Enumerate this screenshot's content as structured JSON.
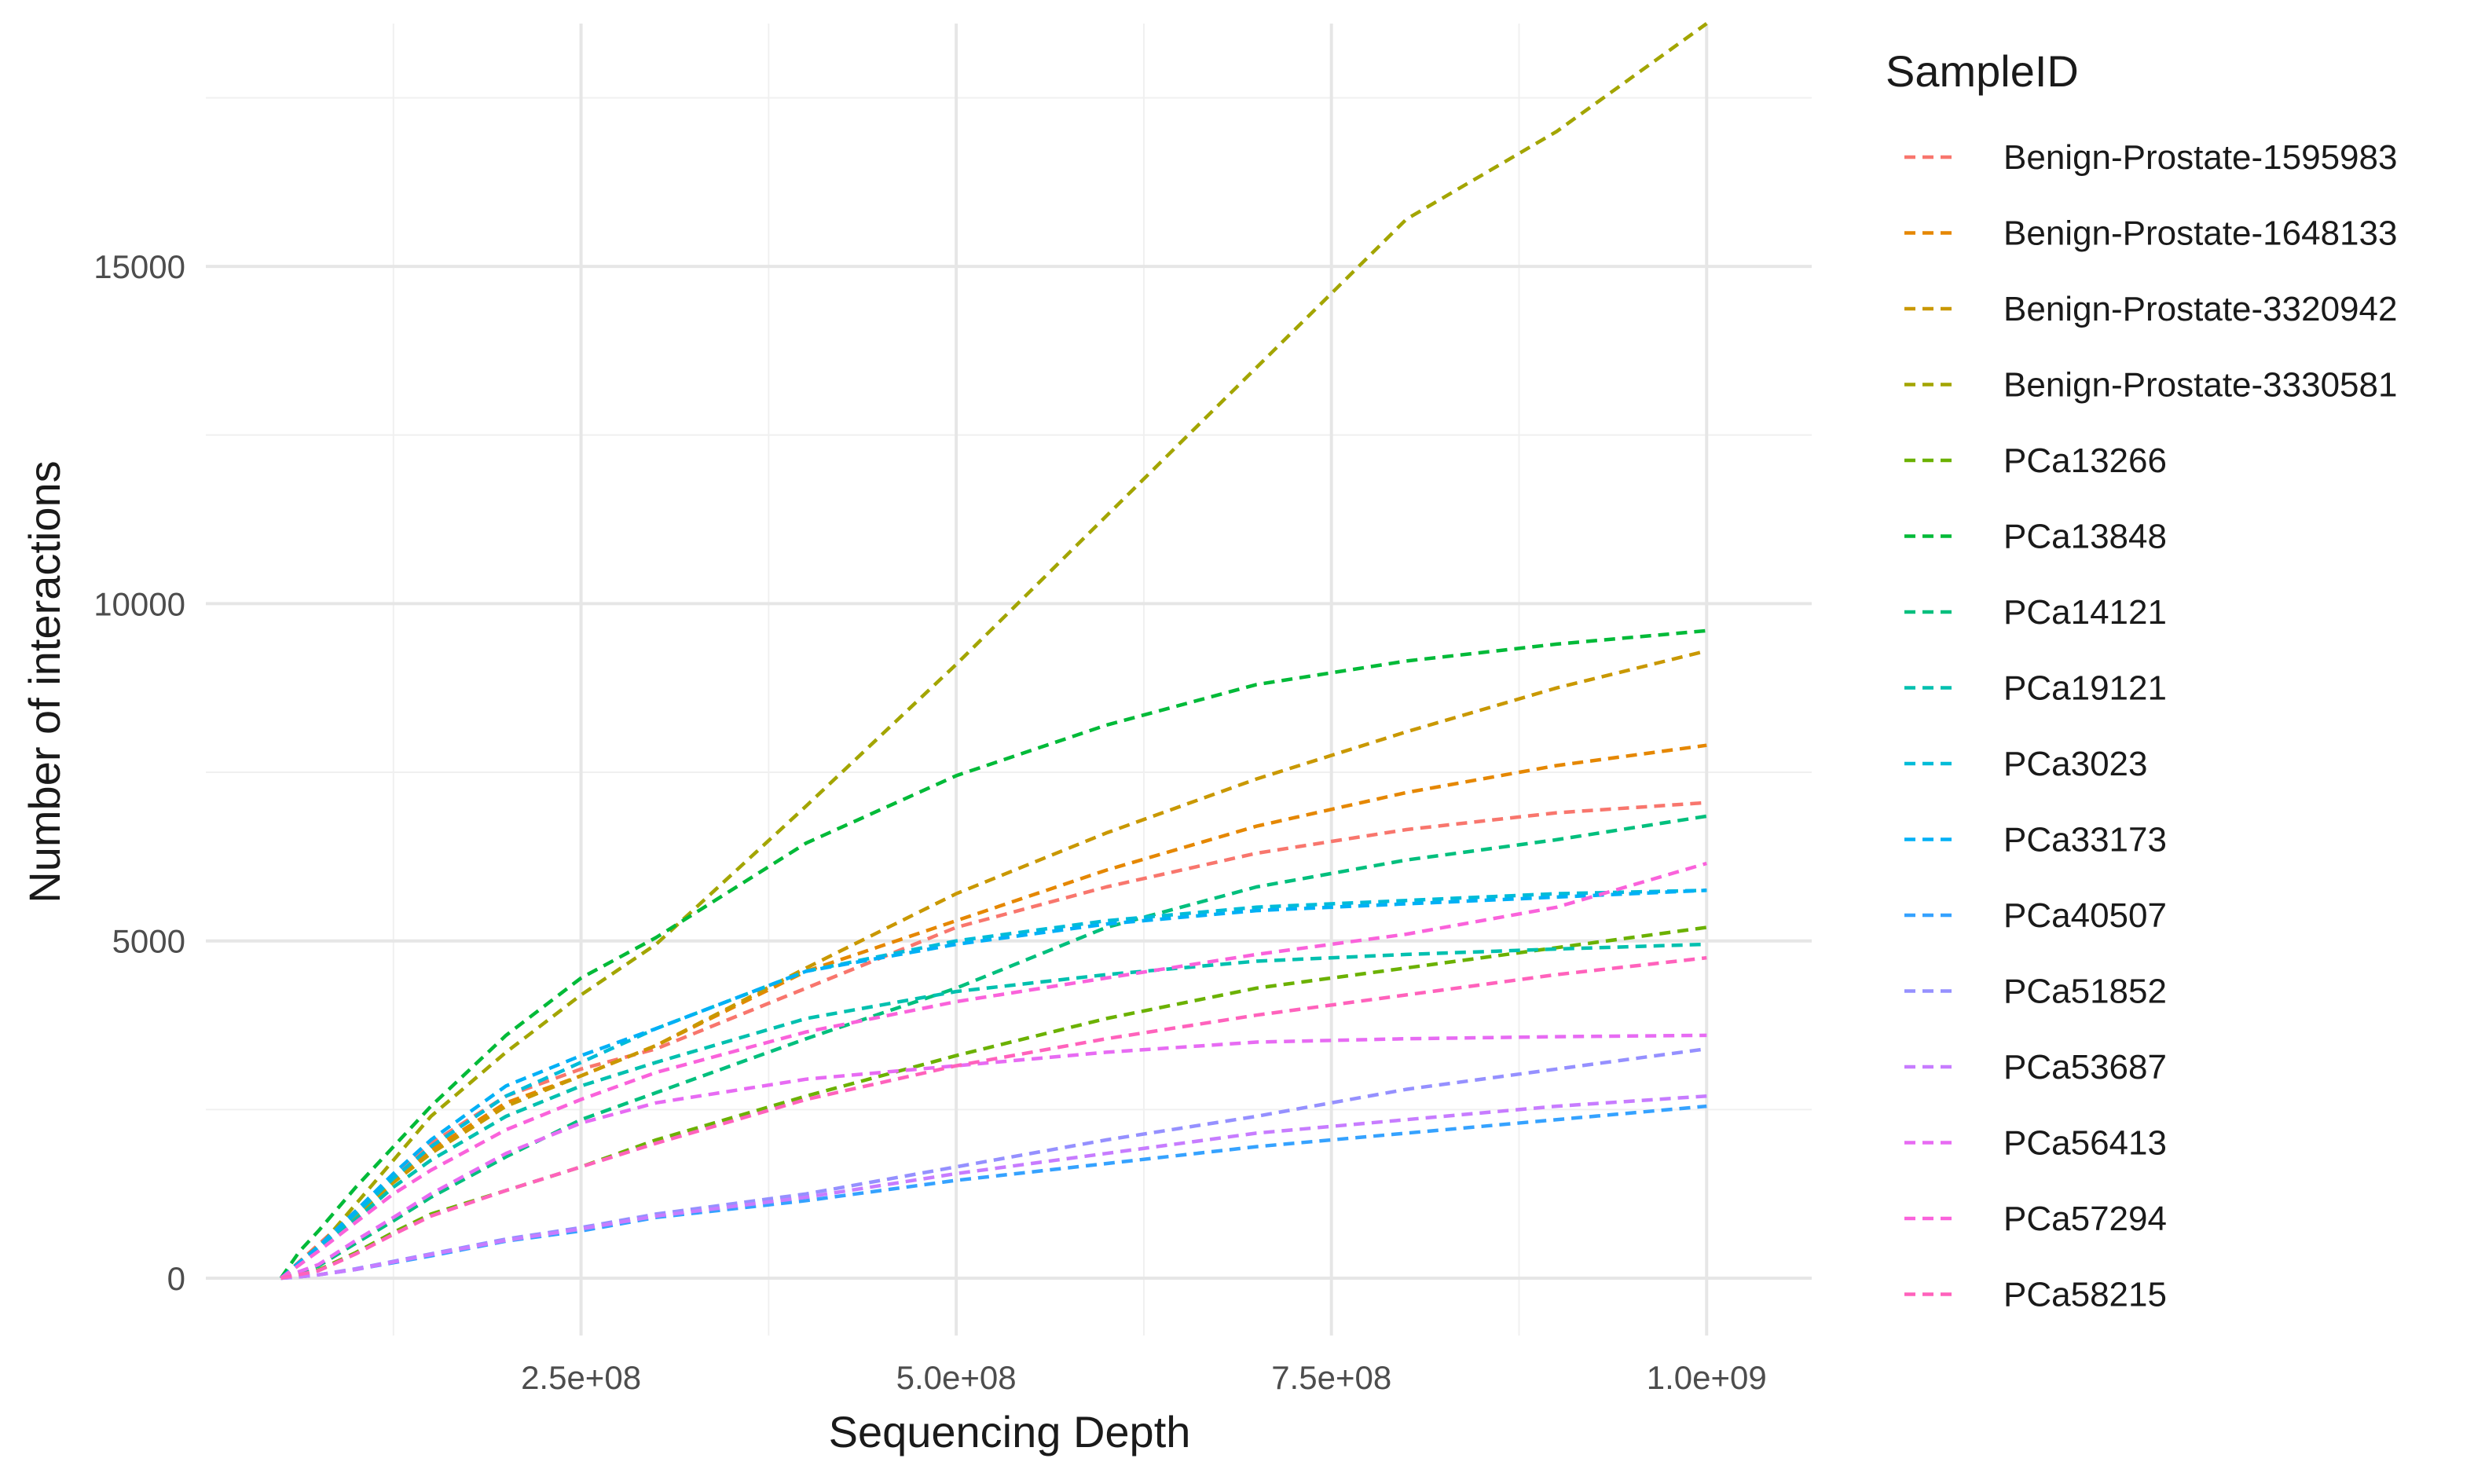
{
  "chart_data": {
    "type": "line",
    "title": "",
    "xlabel": "Sequencing Depth",
    "ylabel": "Number of interactions",
    "xlim": [
      0,
      1070000000
    ],
    "ylim": [
      -850,
      18600
    ],
    "x_ticks": [
      250000000,
      500000000,
      750000000,
      1000000000
    ],
    "x_tick_labels": [
      "2.5e+08",
      "5.0e+08",
      "7.5e+08",
      "1.0e+09"
    ],
    "y_ticks": [
      0,
      5000,
      10000,
      15000
    ],
    "y_tick_labels": [
      "0",
      "5000",
      "10000",
      "15000"
    ],
    "x_minor_ticks": [
      125000000,
      375000000,
      625000000,
      875000000
    ],
    "y_minor_ticks": [
      2500,
      7500,
      12500,
      17500
    ],
    "grid": true,
    "line_style": "dashed",
    "legend": {
      "title": "SampleID",
      "placement": "right"
    },
    "x": [
      50000000,
      62500000,
      75000000,
      100000000,
      125000000,
      150000000,
      200000000,
      250000000,
      300000000,
      400000000,
      500000000,
      600000000,
      700000000,
      800000000,
      900000000,
      1000000000
    ],
    "series": [
      {
        "name": "Benign-Prostate-1595983",
        "color": "#F8766D",
        "values": [
          0,
          250,
          500,
          1000,
          1500,
          2000,
          2700,
          3100,
          3400,
          4300,
          5200,
          5800,
          6300,
          6650,
          6900,
          7050
        ]
      },
      {
        "name": "Benign-Prostate-1648133",
        "color": "#E58700",
        "values": [
          0,
          240,
          480,
          950,
          1450,
          1900,
          2600,
          3000,
          3450,
          4550,
          5300,
          6050,
          6700,
          7200,
          7600,
          7900
        ]
      },
      {
        "name": "Benign-Prostate-3320942",
        "color": "#C99800",
        "values": [
          0,
          230,
          460,
          930,
          1420,
          1850,
          2550,
          3000,
          3450,
          4600,
          5700,
          6600,
          7400,
          8100,
          8750,
          9300
        ]
      },
      {
        "name": "Benign-Prostate-3330581",
        "color": "#A3A500",
        "values": [
          0,
          200,
          450,
          1100,
          1750,
          2400,
          3350,
          4200,
          4950,
          7000,
          9100,
          11300,
          13500,
          15700,
          17000,
          18600
        ]
      },
      {
        "name": "PCa13266",
        "color": "#6BB100",
        "values": [
          0,
          60,
          120,
          380,
          680,
          950,
          1300,
          1650,
          2050,
          2700,
          3300,
          3850,
          4300,
          4600,
          4900,
          5200
        ]
      },
      {
        "name": "PCa13848",
        "color": "#00BA38",
        "values": [
          0,
          400,
          700,
          1350,
          1950,
          2550,
          3600,
          4450,
          5050,
          6450,
          7450,
          8200,
          8800,
          9150,
          9400,
          9600
        ]
      },
      {
        "name": "PCa14121",
        "color": "#00BF7D",
        "values": [
          0,
          90,
          180,
          520,
          850,
          1200,
          1800,
          2350,
          2750,
          3550,
          4300,
          5200,
          5800,
          6200,
          6500,
          6850
        ]
      },
      {
        "name": "PCa19121",
        "color": "#00C0AF",
        "values": [
          0,
          210,
          410,
          870,
          1350,
          1750,
          2400,
          2850,
          3200,
          3850,
          4250,
          4500,
          4700,
          4800,
          4880,
          4950
        ]
      },
      {
        "name": "PCa3023",
        "color": "#00BCD8",
        "values": [
          0,
          220,
          440,
          950,
          1480,
          1950,
          2700,
          3200,
          3700,
          4550,
          5000,
          5300,
          5500,
          5600,
          5700,
          5750
        ]
      },
      {
        "name": "PCa33173",
        "color": "#00B0F6",
        "values": [
          0,
          240,
          470,
          1000,
          1550,
          2050,
          2850,
          3300,
          3700,
          4550,
          4950,
          5250,
          5450,
          5550,
          5650,
          5750
        ]
      },
      {
        "name": "PCa40507",
        "color": "#35A2FF",
        "values": [
          0,
          20,
          50,
          130,
          230,
          330,
          550,
          700,
          900,
          1150,
          1450,
          1700,
          1950,
          2150,
          2350,
          2550
        ]
      },
      {
        "name": "PCa51852",
        "color": "#9590FF",
        "values": [
          0,
          20,
          50,
          140,
          250,
          360,
          580,
          750,
          950,
          1250,
          1650,
          2050,
          2400,
          2800,
          3100,
          3400
        ]
      },
      {
        "name": "PCa53687",
        "color": "#C77CFF",
        "values": [
          0,
          20,
          50,
          130,
          240,
          350,
          560,
          730,
          920,
          1200,
          1550,
          1850,
          2150,
          2350,
          2550,
          2700
        ]
      },
      {
        "name": "PCa56413",
        "color": "#E76BF3",
        "values": [
          0,
          100,
          200,
          560,
          900,
          1250,
          1850,
          2300,
          2600,
          2950,
          3150,
          3350,
          3500,
          3550,
          3580,
          3600
        ]
      },
      {
        "name": "PCa57294",
        "color": "#FA62DB",
        "values": [
          0,
          200,
          400,
          830,
          1250,
          1600,
          2200,
          2650,
          3050,
          3650,
          4100,
          4450,
          4800,
          5100,
          5500,
          6150
        ]
      },
      {
        "name": "PCa58215",
        "color": "#FF62BC",
        "values": [
          0,
          55,
          110,
          360,
          650,
          920,
          1300,
          1650,
          2000,
          2650,
          3150,
          3550,
          3900,
          4200,
          4500,
          4750
        ]
      }
    ]
  }
}
